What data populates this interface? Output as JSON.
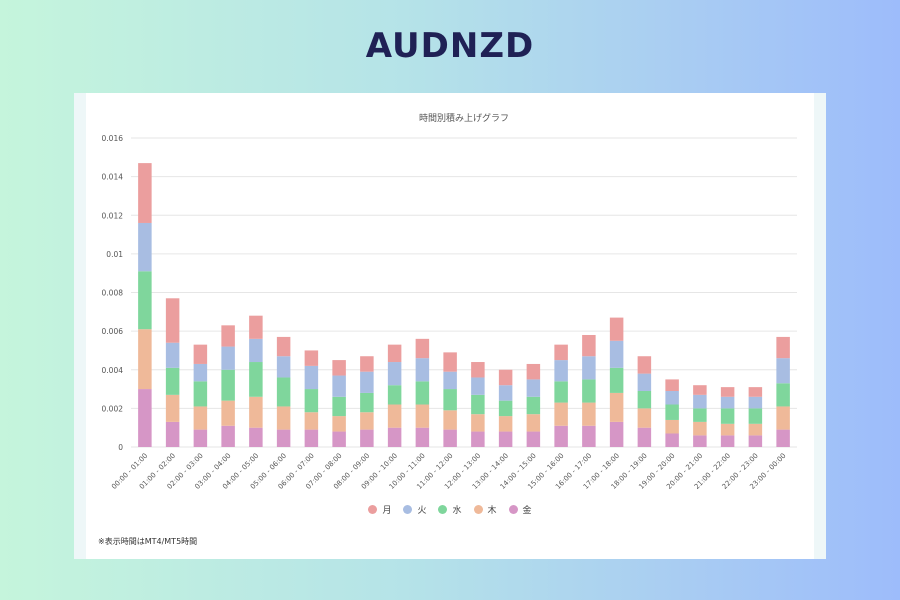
{
  "page": {
    "title": "AUDNZD"
  },
  "note": "※表示時間はMT4/MT5時間",
  "chart_data": {
    "type": "bar",
    "stacked": true,
    "title": "時間別積み上げグラフ",
    "xlabel": "",
    "ylabel": "",
    "ylim": [
      0,
      0.016
    ],
    "yticks": [
      "0",
      "0.002",
      "0.004",
      "0.006",
      "0.008",
      "0.01",
      "0.012",
      "0.014",
      "0.016"
    ],
    "grid": true,
    "legend_position": "bottom",
    "categories": [
      "00:00 - 01:00",
      "01:00 - 02:00",
      "02:00 - 03:00",
      "03:00 - 04:00",
      "04:00 - 05:00",
      "05:00 - 06:00",
      "06:00 - 07:00",
      "07:00 - 08:00",
      "08:00 - 09:00",
      "09:00 - 10:00",
      "10:00 - 11:00",
      "11:00 - 12:00",
      "12:00 - 13:00",
      "13:00 - 14:00",
      "14:00 - 15:00",
      "15:00 - 16:00",
      "16:00 - 17:00",
      "17:00 - 18:00",
      "18:00 - 19:00",
      "19:00 - 20:00",
      "20:00 - 21:00",
      "21:00 - 22:00",
      "22:00 - 23:00",
      "23:00 - 00:00"
    ],
    "series": [
      {
        "name": "金",
        "color": "#d696c6",
        "values": [
          0.003,
          0.0013,
          0.0009,
          0.0011,
          0.001,
          0.0009,
          0.0009,
          0.0008,
          0.0009,
          0.001,
          0.001,
          0.0009,
          0.0008,
          0.0008,
          0.0008,
          0.0011,
          0.0011,
          0.0013,
          0.001,
          0.0007,
          0.0006,
          0.0006,
          0.0006,
          0.0009
        ]
      },
      {
        "name": "木",
        "color": "#efb999",
        "values": [
          0.0031,
          0.0014,
          0.0012,
          0.0013,
          0.0016,
          0.0012,
          0.0009,
          0.0008,
          0.0009,
          0.0012,
          0.0012,
          0.001,
          0.0009,
          0.0008,
          0.0009,
          0.0012,
          0.0012,
          0.0015,
          0.001,
          0.0007,
          0.0007,
          0.0006,
          0.0006,
          0.0012
        ]
      },
      {
        "name": "水",
        "color": "#7fd69c",
        "values": [
          0.003,
          0.0014,
          0.0013,
          0.0016,
          0.0018,
          0.0015,
          0.0012,
          0.001,
          0.001,
          0.001,
          0.0012,
          0.0011,
          0.001,
          0.0008,
          0.0009,
          0.0011,
          0.0012,
          0.0013,
          0.0009,
          0.0008,
          0.0007,
          0.0008,
          0.0008,
          0.0012
        ]
      },
      {
        "name": "火",
        "color": "#a8bde2",
        "values": [
          0.0025,
          0.0013,
          0.0009,
          0.0012,
          0.0012,
          0.0011,
          0.0012,
          0.0011,
          0.0011,
          0.0012,
          0.0012,
          0.0009,
          0.0009,
          0.0008,
          0.0009,
          0.0011,
          0.0012,
          0.0014,
          0.0009,
          0.0007,
          0.0007,
          0.0006,
          0.0006,
          0.0013
        ]
      },
      {
        "name": "月",
        "color": "#eb9e9e",
        "values": [
          0.0031,
          0.0023,
          0.001,
          0.0011,
          0.0012,
          0.001,
          0.0008,
          0.0008,
          0.0008,
          0.0009,
          0.001,
          0.001,
          0.0008,
          0.0008,
          0.0008,
          0.0008,
          0.0011,
          0.0012,
          0.0009,
          0.0006,
          0.0005,
          0.0005,
          0.0005,
          0.0011
        ]
      }
    ],
    "legend_order": [
      "月",
      "火",
      "水",
      "木",
      "金"
    ]
  }
}
